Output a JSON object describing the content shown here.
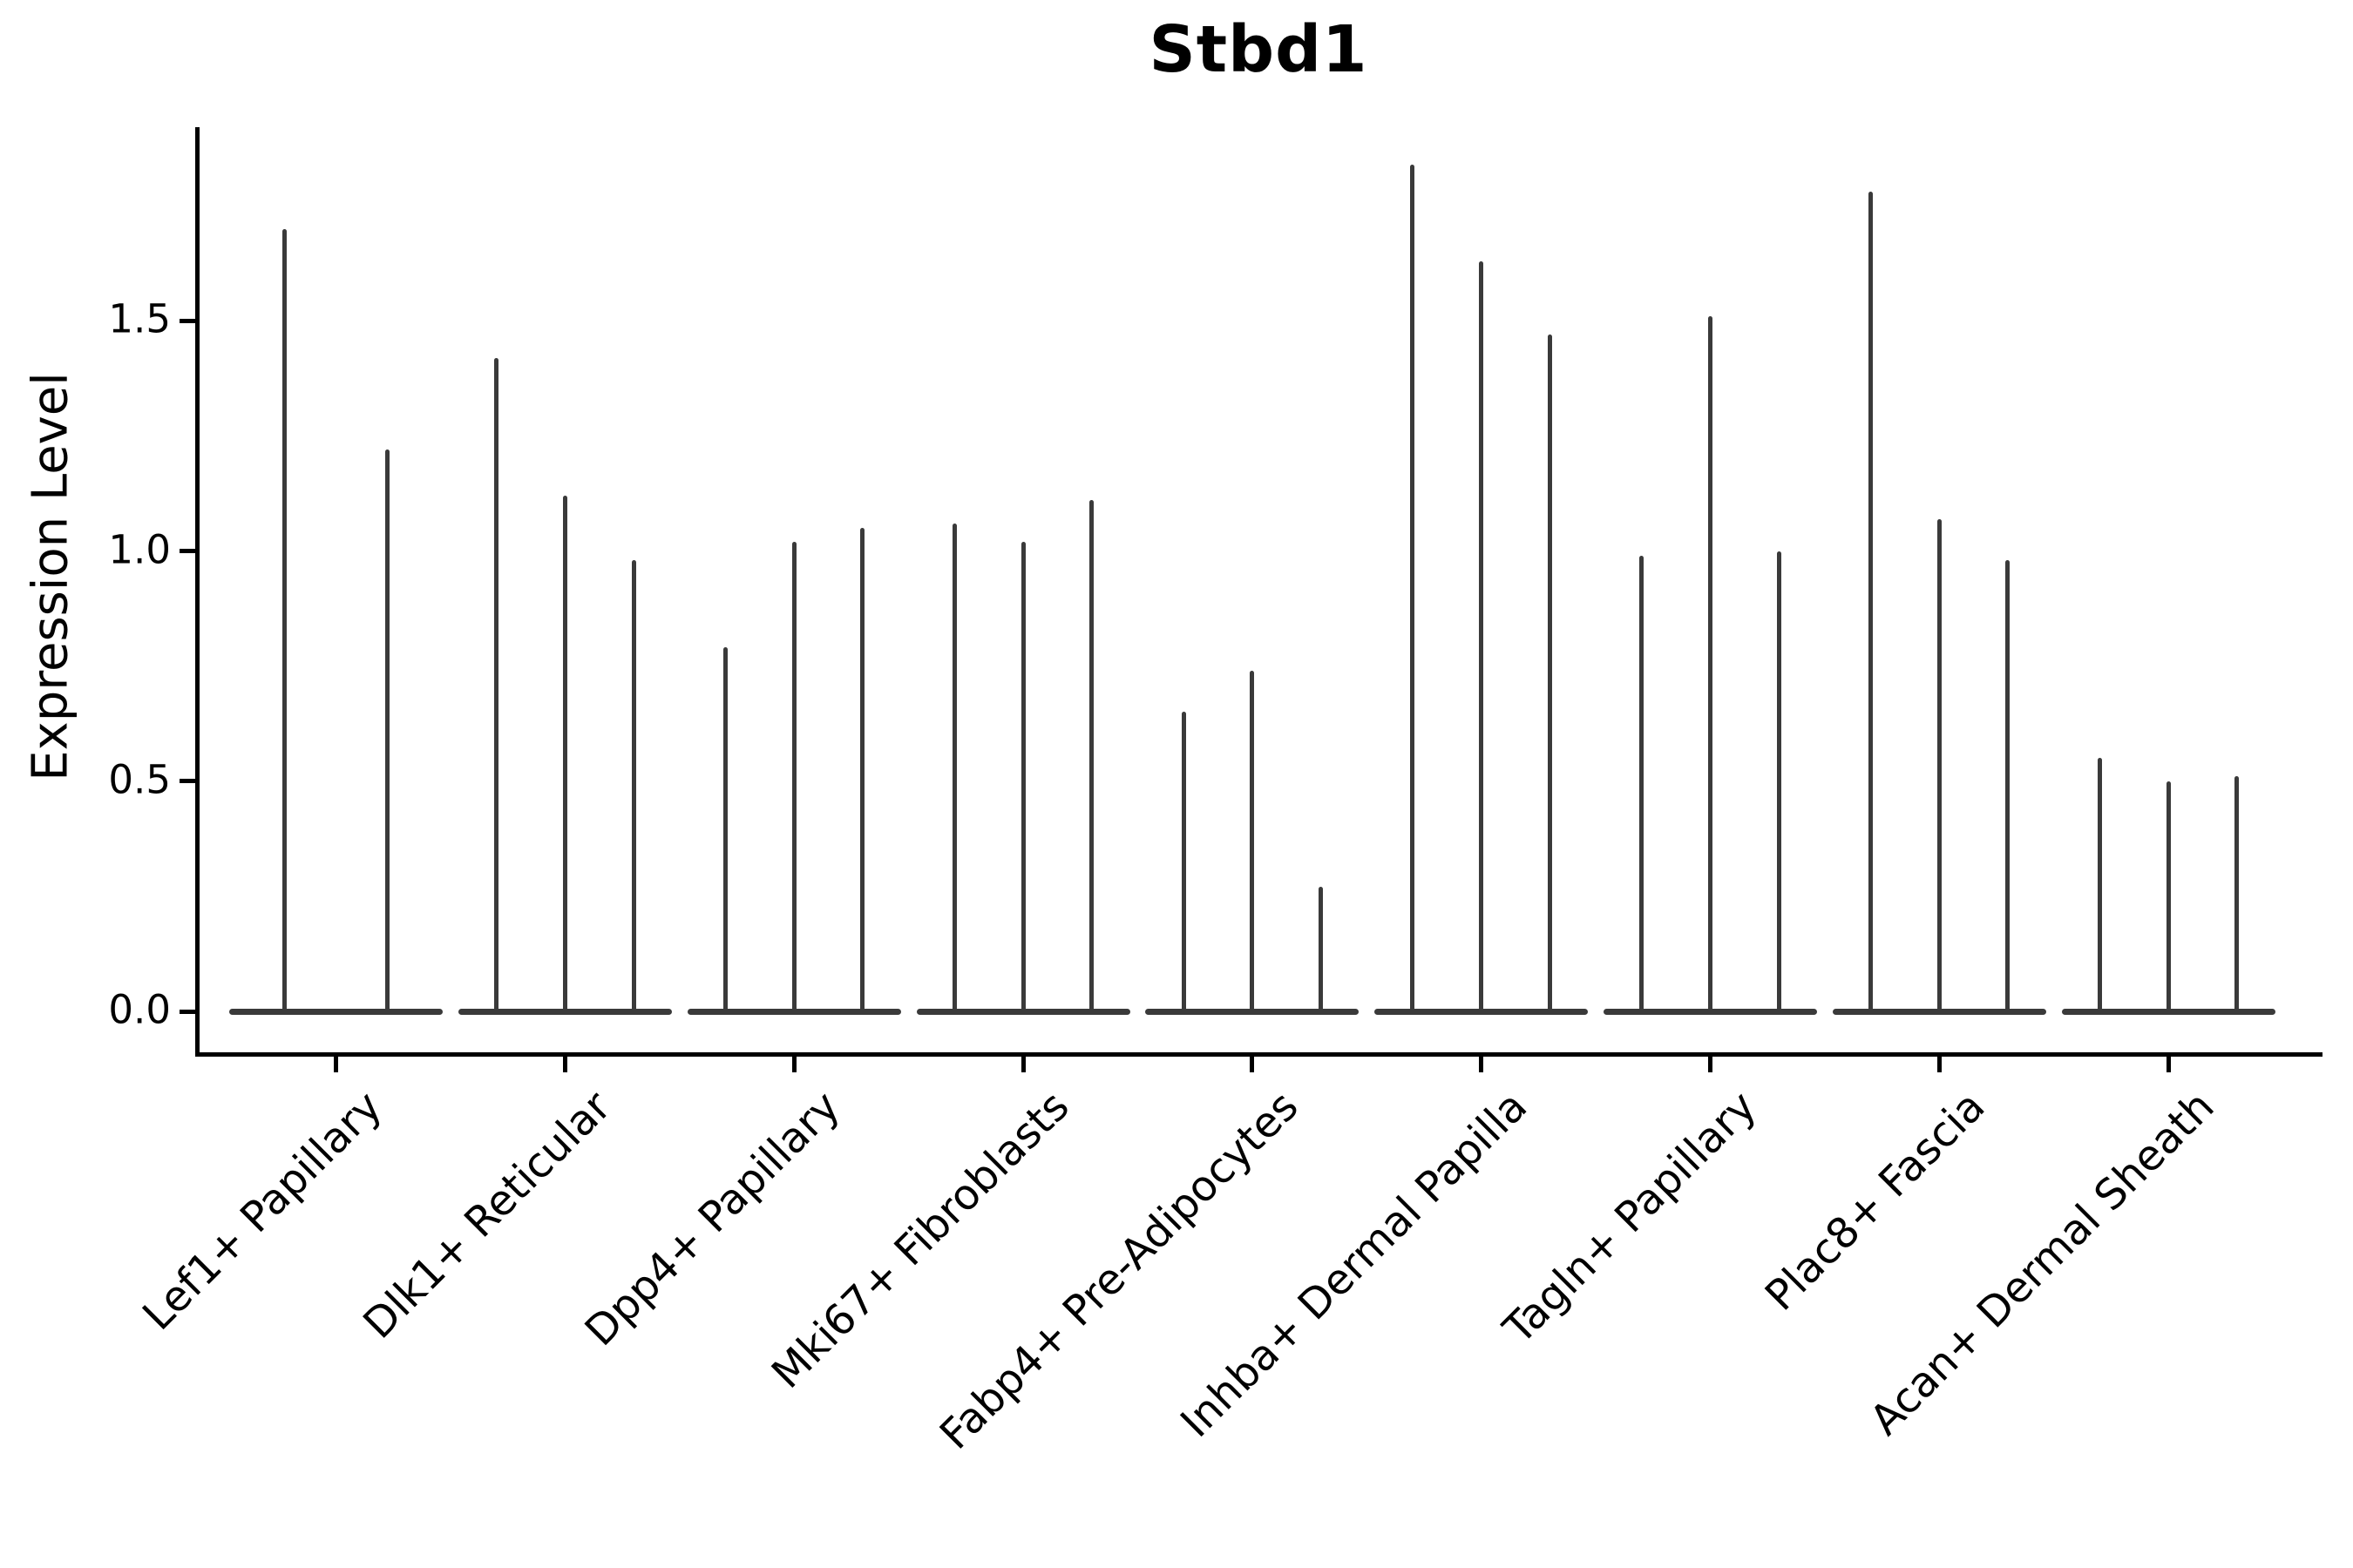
{
  "chart_data": {
    "type": "violin",
    "title": "Stbd1",
    "ylabel": "Expression Level",
    "xlabel": "",
    "yticks": [
      0.0,
      0.5,
      1.0,
      1.5
    ],
    "ytick_labels": [
      "0.0",
      "0.5",
      "1.0",
      "1.5"
    ],
    "ylim": [
      -0.09,
      1.92
    ],
    "grid": false,
    "legend": "none",
    "categories": [
      "Lef1+ Papillary",
      "Dlk1+ Reticular",
      "Dpp4+ Papillary",
      "Mki67+ Fibroblasts",
      "Fabp4+ Pre-Adipocytes",
      "Inhba+ Dermal Papilla",
      "Tagln+ Papillary",
      "Plac8+ Fascia",
      "Acan+ Dermal Sheath"
    ],
    "groups": [
      {
        "label": "Lef1+ Papillary",
        "peaks": [
          1.7,
          1.22
        ]
      },
      {
        "label": "Dlk1+ Reticular",
        "peaks": [
          1.42,
          1.12,
          0.98
        ]
      },
      {
        "label": "Dpp4+ Papillary",
        "peaks": [
          0.79,
          1.02,
          1.05
        ]
      },
      {
        "label": "Mki67+ Fibroblasts",
        "peaks": [
          1.06,
          1.02,
          1.11
        ]
      },
      {
        "label": "Fabp4+ Pre-Adipocytes",
        "peaks": [
          0.65,
          0.74,
          0.27
        ]
      },
      {
        "label": "Inhba+ Dermal Papilla",
        "peaks": [
          1.84,
          1.63,
          1.47
        ]
      },
      {
        "label": "Tagln+ Papillary",
        "peaks": [
          0.99,
          1.51,
          1.0
        ]
      },
      {
        "label": "Plac8+ Fascia",
        "peaks": [
          1.78,
          1.07,
          0.98
        ]
      },
      {
        "label": "Acan+ Dermal Sheath",
        "peaks": [
          0.55,
          0.5,
          0.51
        ]
      }
    ],
    "colors": {
      "violin": "#3a3a3a",
      "axis": "#000000",
      "text": "#000000",
      "background": "#ffffff"
    }
  }
}
